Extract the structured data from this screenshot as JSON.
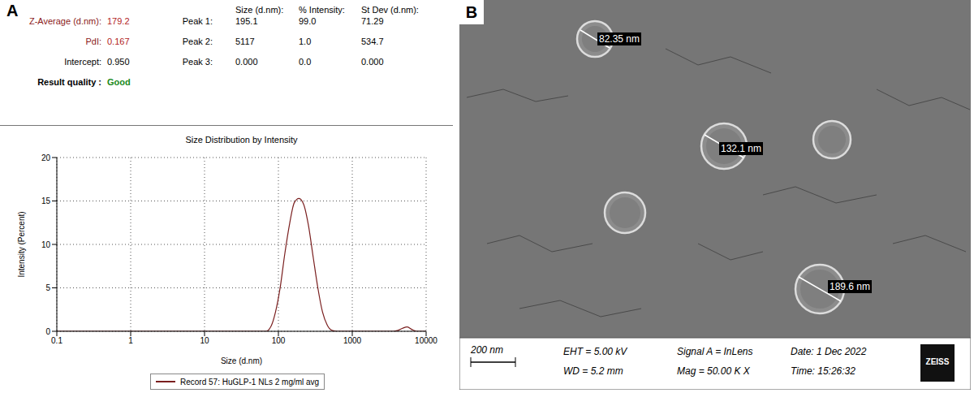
{
  "panel_a": {
    "label": "A",
    "summary": [
      {
        "label": "Z-Average (d.nm):",
        "value": "179.2"
      },
      {
        "label": "PdI:",
        "value": "0.167"
      },
      {
        "label": "Intercept:",
        "value": "0.950"
      },
      {
        "label": "Result quality :",
        "value": "Good"
      }
    ],
    "peaks": {
      "columns": [
        "Size (d.nm):",
        "% Intensity:",
        "St Dev (d.nm):"
      ],
      "rows": [
        {
          "label": "Peak 1:",
          "values": [
            "195.1",
            "99.0",
            "71.29"
          ]
        },
        {
          "label": "Peak 2:",
          "values": [
            "5117",
            "1.0",
            "534.7"
          ]
        },
        {
          "label": "Peak 3:",
          "values": [
            "0.000",
            "0.0",
            "0.000"
          ]
        }
      ]
    }
  },
  "chart_data": {
    "type": "line",
    "title": "Size Distribution by Intensity",
    "x_label": "Size (d.nm)",
    "y_label": "Intensity (Percent)",
    "log": "x",
    "grid": true,
    "legend": "bottom",
    "xlim": [
      0.1,
      10000
    ],
    "xticks": [
      0.1,
      1,
      10,
      100,
      1000,
      10000
    ],
    "ylim": [
      0,
      20
    ],
    "yticks": [
      0,
      5,
      10,
      15,
      20
    ],
    "series": [
      {
        "name": "Record 57: HuGLP-1 NLs 2 mg/ml avg",
        "color": "#7a1f1f",
        "x": [
          0.1,
          68.1,
          79.8,
          91.3,
          106,
          122,
          142,
          164,
          190,
          220,
          255,
          295,
          342,
          396,
          459,
          531,
          615,
          712,
          3580,
          4150,
          4800,
          5560,
          6440,
          7460,
          10000
        ],
        "values": [
          0,
          0,
          0.6,
          2.2,
          5.1,
          8.9,
          12.4,
          14.8,
          15.3,
          14.6,
          12.2,
          8.6,
          5.0,
          2.2,
          0.7,
          0.1,
          0,
          0,
          0,
          0.1,
          0.35,
          0.5,
          0.2,
          0,
          0
        ]
      }
    ]
  },
  "panel_b": {
    "label": "B",
    "measurements": [
      "82.35 nm",
      "132.1 nm",
      "189.6 nm"
    ],
    "scale_bar": "200 nm",
    "info": [
      "EHT = 5.00 kV",
      "WD = 5.2 mm",
      "Signal A = InLens",
      "Mag = 50.00 K X",
      "Date: 1 Dec 2022",
      "Time: 15:26:32"
    ],
    "logo": "ZEISS"
  }
}
